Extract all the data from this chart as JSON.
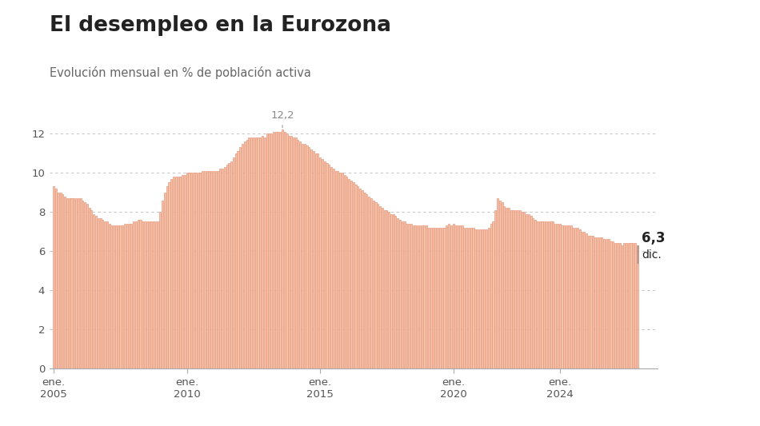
{
  "title": "El desempleo en la Eurozona",
  "subtitle": "Evolución mensual en % de población activa",
  "title_fontsize": 19,
  "subtitle_fontsize": 10.5,
  "background_color": "#ffffff",
  "bar_color": "#f5c4a8",
  "bar_edge_color": "#e8967a",
  "grid_color": "#bbbbbb",
  "text_color": "#222222",
  "annotation_peak_label": "12,2",
  "annotation_last_label": "6,3",
  "annotation_last_sublabel": "dic.",
  "annotation_color": "#888888",
  "yticks": [
    0,
    2,
    4,
    6,
    8,
    10,
    12
  ],
  "ylim": [
    0,
    13.5
  ],
  "data": [
    9.3,
    9.2,
    9.0,
    9.0,
    8.9,
    8.8,
    8.7,
    8.7,
    8.7,
    8.7,
    8.7,
    8.7,
    8.7,
    8.6,
    8.5,
    8.4,
    8.2,
    8.1,
    7.9,
    7.8,
    7.7,
    7.7,
    7.6,
    7.5,
    7.5,
    7.4,
    7.3,
    7.3,
    7.3,
    7.3,
    7.3,
    7.3,
    7.4,
    7.4,
    7.4,
    7.4,
    7.5,
    7.5,
    7.6,
    7.6,
    7.5,
    7.5,
    7.5,
    7.5,
    7.5,
    7.5,
    7.5,
    7.5,
    8.0,
    8.6,
    9.0,
    9.3,
    9.5,
    9.7,
    9.8,
    9.8,
    9.8,
    9.8,
    9.9,
    9.9,
    10.0,
    10.0,
    10.0,
    10.0,
    10.0,
    10.0,
    10.0,
    10.1,
    10.1,
    10.1,
    10.1,
    10.1,
    10.1,
    10.1,
    10.1,
    10.2,
    10.2,
    10.3,
    10.4,
    10.5,
    10.6,
    10.8,
    11.0,
    11.1,
    11.3,
    11.5,
    11.6,
    11.7,
    11.8,
    11.8,
    11.8,
    11.8,
    11.8,
    11.8,
    11.9,
    11.8,
    12.0,
    12.0,
    12.0,
    12.1,
    12.1,
    12.1,
    12.1,
    12.2,
    12.1,
    12.0,
    11.9,
    11.9,
    11.8,
    11.8,
    11.7,
    11.6,
    11.5,
    11.5,
    11.4,
    11.3,
    11.2,
    11.1,
    11.0,
    11.0,
    10.8,
    10.7,
    10.6,
    10.5,
    10.4,
    10.3,
    10.2,
    10.1,
    10.1,
    10.0,
    10.0,
    9.9,
    9.8,
    9.7,
    9.6,
    9.5,
    9.4,
    9.3,
    9.2,
    9.1,
    9.0,
    8.9,
    8.8,
    8.7,
    8.6,
    8.5,
    8.4,
    8.3,
    8.2,
    8.1,
    8.1,
    8.0,
    7.9,
    7.9,
    7.8,
    7.7,
    7.6,
    7.5,
    7.5,
    7.4,
    7.4,
    7.4,
    7.3,
    7.3,
    7.3,
    7.3,
    7.3,
    7.3,
    7.3,
    7.2,
    7.2,
    7.2,
    7.2,
    7.2,
    7.2,
    7.2,
    7.2,
    7.3,
    7.4,
    7.3,
    7.4,
    7.3,
    7.3,
    7.3,
    7.3,
    7.2,
    7.2,
    7.2,
    7.2,
    7.2,
    7.1,
    7.1,
    7.1,
    7.1,
    7.1,
    7.1,
    7.2,
    7.4,
    7.5,
    8.1,
    8.7,
    8.6,
    8.5,
    8.3,
    8.2,
    8.2,
    8.1,
    8.1,
    8.1,
    8.1,
    8.1,
    8.0,
    8.0,
    7.9,
    7.9,
    7.8,
    7.7,
    7.6,
    7.5,
    7.5,
    7.5,
    7.5,
    7.5,
    7.5,
    7.5,
    7.5,
    7.4,
    7.4,
    7.4,
    7.3,
    7.3,
    7.3,
    7.3,
    7.3,
    7.2,
    7.2,
    7.2,
    7.1,
    7.0,
    7.0,
    6.9,
    6.8,
    6.8,
    6.8,
    6.7,
    6.7,
    6.7,
    6.7,
    6.6,
    6.6,
    6.6,
    6.5,
    6.5,
    6.4,
    6.4,
    6.4,
    6.3,
    6.4,
    6.4,
    6.4,
    6.4,
    6.4,
    6.4,
    6.3
  ],
  "peak_idx": 103,
  "start_year": 2005,
  "start_month": 1
}
